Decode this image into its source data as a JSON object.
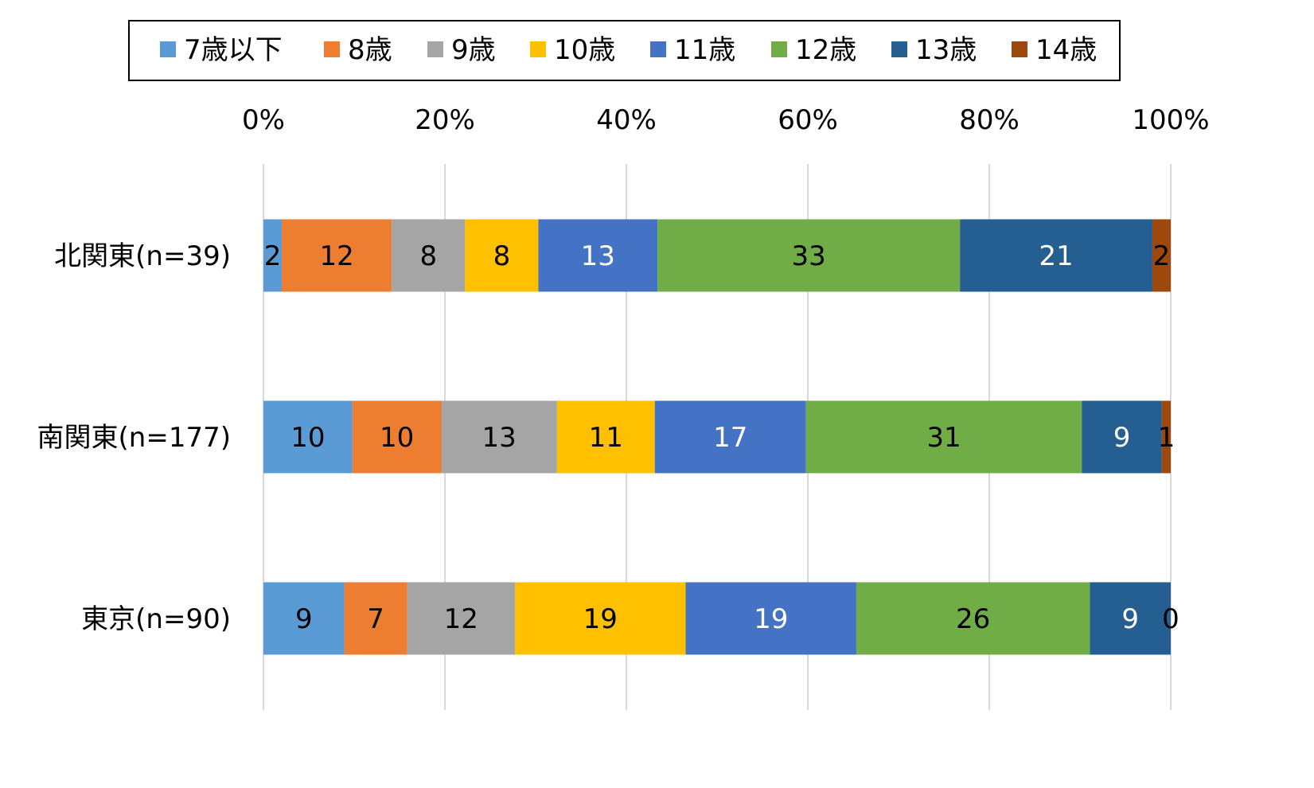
{
  "chart_data": {
    "type": "bar",
    "orientation": "horizontal",
    "stacked": "percent",
    "legend_position": "top",
    "grid": true,
    "xlim": [
      0,
      100
    ],
    "x_ticks": [
      "0%",
      "20%",
      "40%",
      "60%",
      "80%",
      "100%"
    ],
    "categories": [
      "北関東(n=39)",
      "南関東(n=177)",
      "東京(n=90)"
    ],
    "series": [
      {
        "name": "7歳以下",
        "color": "#5B9BD5",
        "label_color": "#000000",
        "values": [
          2,
          10,
          9
        ]
      },
      {
        "name": "8歳",
        "color": "#ED7D31",
        "label_color": "#000000",
        "values": [
          12,
          10,
          7
        ]
      },
      {
        "name": "9歳",
        "color": "#A5A5A5",
        "label_color": "#000000",
        "values": [
          8,
          13,
          12
        ]
      },
      {
        "name": "10歳",
        "color": "#FFC000",
        "label_color": "#000000",
        "values": [
          8,
          11,
          19
        ]
      },
      {
        "name": "11歳",
        "color": "#4472C4",
        "label_color": "#ffffff",
        "values": [
          13,
          17,
          19
        ]
      },
      {
        "name": "12歳",
        "color": "#70AD47",
        "label_color": "#000000",
        "values": [
          33,
          31,
          26
        ]
      },
      {
        "name": "13歳",
        "color": "#255E91",
        "label_color": "#ffffff",
        "values": [
          21,
          9,
          9
        ]
      },
      {
        "name": "14歳",
        "color": "#9E480E",
        "label_color": "#000000",
        "values": [
          2,
          1,
          0
        ]
      }
    ],
    "gridline_color": "#d9d9d9",
    "legend_border_color": "#000000"
  }
}
